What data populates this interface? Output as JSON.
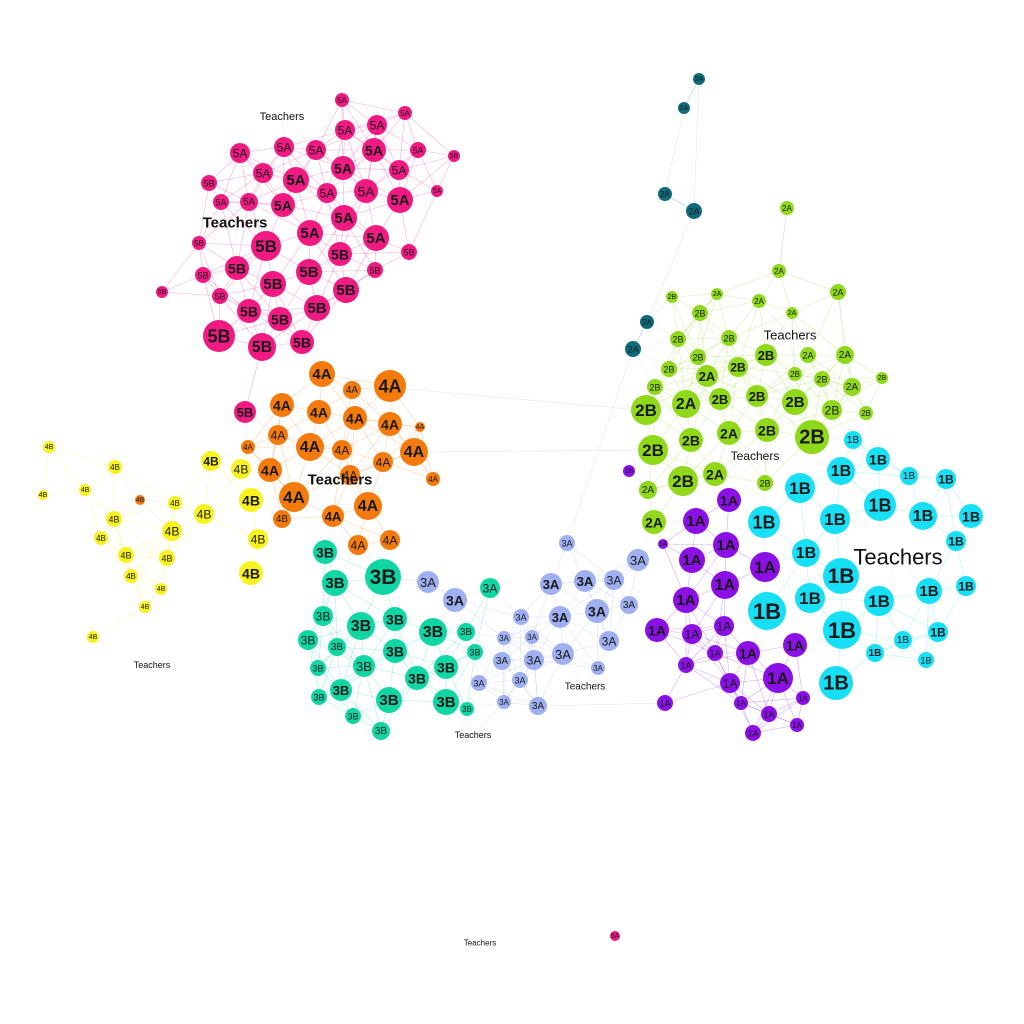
{
  "graph": {
    "type": "network",
    "colors": {
      "1A": "#8b10e6",
      "1B": "#17dff5",
      "2A": "#8fd81a",
      "2B": "#8fd81a",
      "2A_dark": "#0e6b7c",
      "3A": "#9fb0f2",
      "3B": "#10d6a4",
      "4A": "#f57a0c",
      "4B": "#f8f21f",
      "5A": "#f01a82",
      "5B": "#f01a82",
      "Teachers": "#ffffff",
      "edge": "#cfd6e6"
    },
    "clusters": [
      {
        "group": "5A",
        "label": "5A"
      },
      {
        "group": "5B",
        "label": "5B"
      },
      {
        "group": "4A",
        "label": "4A"
      },
      {
        "group": "4B",
        "label": "4B"
      },
      {
        "group": "3A",
        "label": "3A"
      },
      {
        "group": "3B",
        "label": "3B"
      },
      {
        "group": "2A",
        "label": "2A"
      },
      {
        "group": "2B",
        "label": "2B"
      },
      {
        "group": "1A",
        "label": "1A"
      },
      {
        "group": "1B",
        "label": "1B"
      }
    ],
    "teacher_label": "Teachers"
  }
}
